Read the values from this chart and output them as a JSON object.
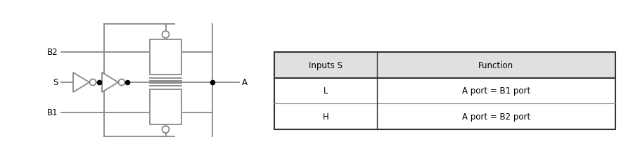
{
  "bg_color": "#ffffff",
  "circuit_color": "#888888",
  "line_width": 1.3,
  "table_header_bg": "#e0e0e0",
  "table_row_bg": "#ffffff",
  "table_border_color": "#333333",
  "table_header": [
    "Inputs S",
    "Function"
  ],
  "table_rows": [
    [
      "L",
      "A port = B1 port"
    ],
    [
      "H",
      "A port = B2 port"
    ]
  ],
  "label_B2": "B2",
  "label_B1": "B1",
  "label_S": "S",
  "label_A": "A",
  "font_size": 8.5
}
